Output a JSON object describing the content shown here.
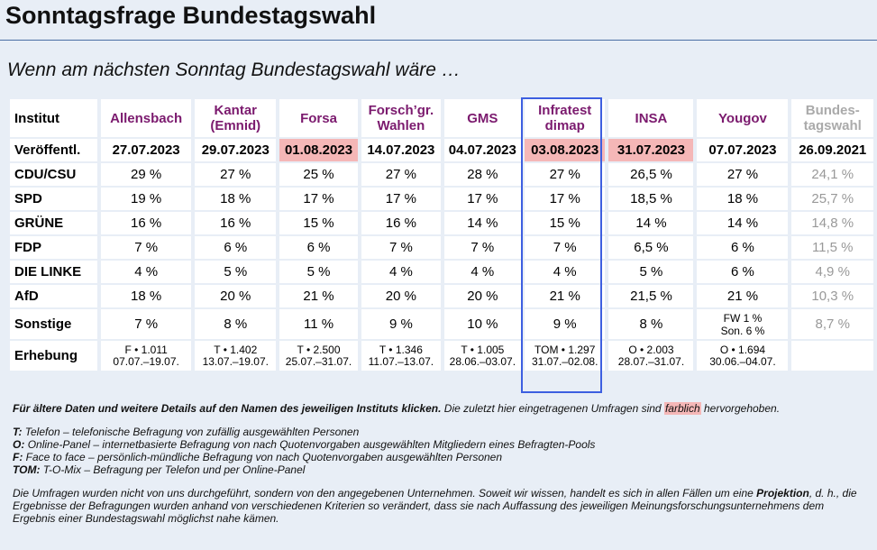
{
  "title": "Sonntagsfrage Bundestagswahl",
  "subtitle": "Wenn am nächsten Sonntag Bundestagswahl wäre …",
  "table": {
    "header_label": "Institut",
    "institutes": [
      "Allensbach",
      "Kantar (Emnid)",
      "Forsa",
      "Forsch’gr. Wahlen",
      "GMS",
      "Infratest dimap",
      "INSA",
      "Yougov",
      "Bundes-tagswahl"
    ],
    "date_label": "Veröffentl.",
    "dates": [
      "27.07.2023",
      "29.07.2023",
      "01.08.2023",
      "14.07.2023",
      "04.07.2023",
      "03.08.2023",
      "31.07.2023",
      "07.07.2023",
      "26.09.2021"
    ],
    "highlighted_dates": [
      2,
      5,
      6
    ],
    "highlight_color": "#f5b7b7",
    "rows": [
      {
        "party": "CDU/CSU",
        "values": [
          "29 %",
          "27 %",
          "25 %",
          "27 %",
          "28 %",
          "27 %",
          "26,5 %",
          "27 %",
          "24,1 %"
        ]
      },
      {
        "party": "SPD",
        "values": [
          "19 %",
          "18 %",
          "17 %",
          "17 %",
          "17 %",
          "17 %",
          "18,5 %",
          "18 %",
          "25,7 %"
        ]
      },
      {
        "party": "GRÜNE",
        "values": [
          "16 %",
          "16 %",
          "15 %",
          "16 %",
          "14 %",
          "15 %",
          "14 %",
          "14 %",
          "14,8 %"
        ]
      },
      {
        "party": "FDP",
        "values": [
          "7 %",
          "6 %",
          "6 %",
          "7 %",
          "7 %",
          "7 %",
          "6,5 %",
          "6 %",
          "11,5 %"
        ]
      },
      {
        "party": "DIE LINKE",
        "values": [
          "4 %",
          "5 %",
          "5 %",
          "4 %",
          "4 %",
          "4 %",
          "5 %",
          "6 %",
          "4,9 %"
        ]
      },
      {
        "party": "AfD",
        "values": [
          "18 %",
          "20 %",
          "21 %",
          "20 %",
          "20 %",
          "21 %",
          "21,5 %",
          "21 %",
          "10,3 %"
        ]
      }
    ],
    "sonstige": {
      "label": "Sonstige",
      "values": [
        "7 %",
        "8 %",
        "11 %",
        "9 %",
        "10 %",
        "9 %",
        "8 %",
        "",
        "8,7 %"
      ],
      "yougov_line1": "FW 1 %",
      "yougov_line2": "Son. 6 %"
    },
    "erhebung": {
      "label": "Erhebung",
      "cells": [
        {
          "line1": "F • 1.011",
          "line2": "07.07.–19.07."
        },
        {
          "line1": "T • 1.402",
          "line2": "13.07.–19.07."
        },
        {
          "line1": "T • 2.500",
          "line2": "25.07.–31.07."
        },
        {
          "line1": "T • 1.346",
          "line2": "11.07.–13.07."
        },
        {
          "line1": "T • 1.005",
          "line2": "28.06.–03.07."
        },
        {
          "line1": "TOM • 1.297",
          "line2": "31.07.–02.08."
        },
        {
          "line1": "O • 2.003",
          "line2": "28.07.–31.07."
        },
        {
          "line1": "O • 1.694",
          "line2": "30.06.–04.07."
        },
        {
          "line1": "",
          "line2": ""
        }
      ]
    },
    "institute_color": "#7b1a6e",
    "election_color": "#999999",
    "box_color": "#3d5fe0"
  },
  "notes": {
    "bold_part": "Für ältere Daten und weitere Details auf den Namen des jeweiligen Instituts klicken.",
    "normal_part": " Die zuletzt hier eingetragenen Umfragen sind ",
    "marked_word": "farblich",
    "end_part": " hervorgehoben.",
    "legend": [
      {
        "key": "T:",
        "text": "Telefon – telefonische Befragung von zufällig ausgewählten Personen"
      },
      {
        "key": "O:",
        "text": "Online-Panel – internetbasierte Befragung von nach Quotenvorgaben ausgewählten Mitgliedern eines Befragten-Pools"
      },
      {
        "key": "F:",
        "text": "Face to face – persönlich-mündliche Befragung von nach Quotenvorgaben ausgewählten Personen"
      },
      {
        "key": "TOM:",
        "text": "T-O-Mix – Befragung per Telefon und per Online-Panel"
      }
    ],
    "disclaimer_1": "Die Umfragen wurden nicht von uns durchgeführt, sondern von den angegebenen Unternehmen. Soweit wir wissen, handelt es sich in allen Fällen um eine ",
    "disclaimer_bold": "Projektion",
    "disclaimer_2": ", d. h., die Ergebnisse der Befragungen wurden anhand von verschiedenen Kriterien so verändert, dass sie nach Auffassung des jeweiligen Meinungsforschungsunternehmens dem Ergebnis einer Bundestagswahl möglichst nahe kämen."
  }
}
